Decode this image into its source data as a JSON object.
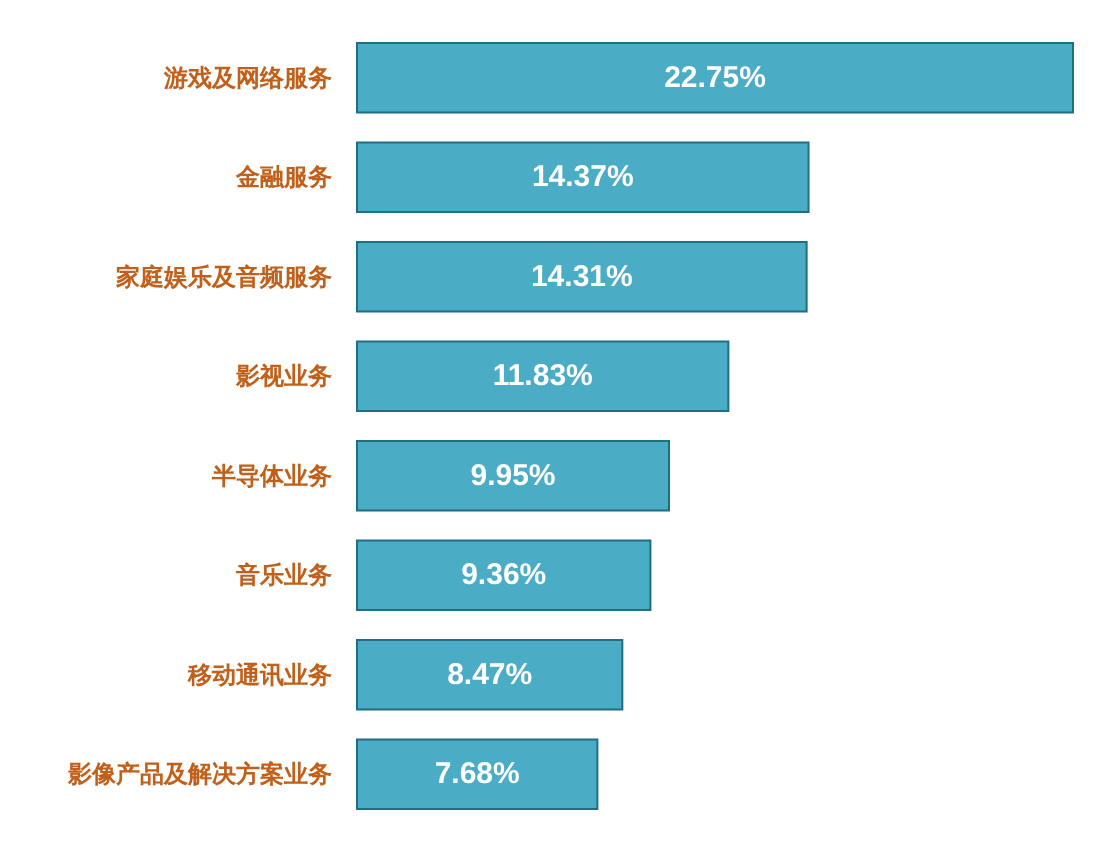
{
  "chart_data": {
    "type": "bar",
    "orientation": "horizontal",
    "categories": [
      "游戏及网络服务",
      "金融服务",
      "家庭娱乐及音频服务",
      "影视业务",
      "半导体业务",
      "音乐业务",
      "移动通讯业务",
      "影像产品及解决方案业务"
    ],
    "values": [
      22.75,
      14.37,
      14.31,
      11.83,
      9.95,
      9.36,
      8.47,
      7.68
    ],
    "value_labels": [
      "22.75%",
      "14.37%",
      "14.31%",
      "11.83%",
      "9.95%",
      "9.36%",
      "8.47%",
      "7.68%"
    ],
    "color": "#4bacc6"
  }
}
